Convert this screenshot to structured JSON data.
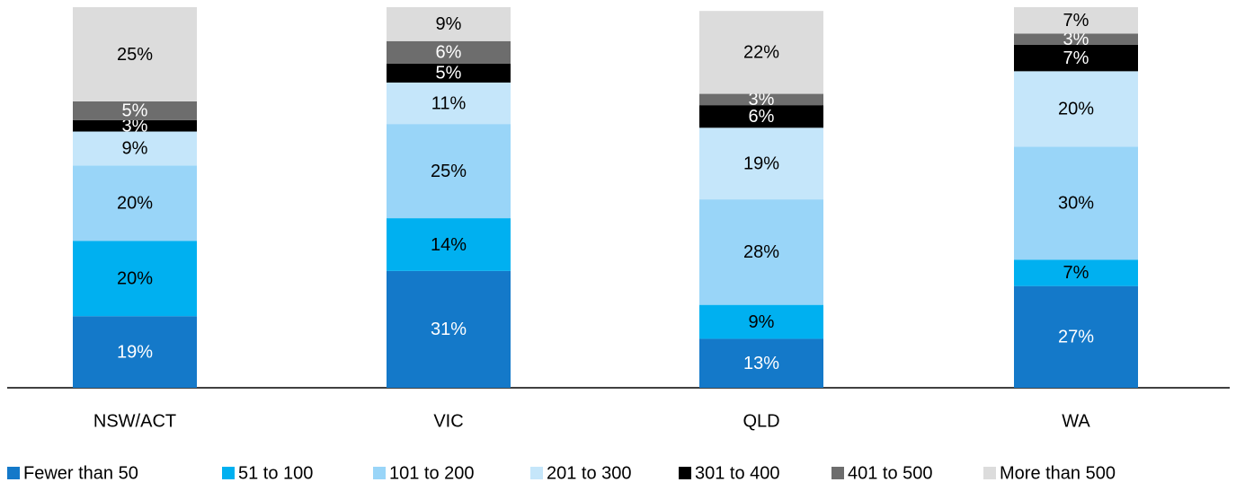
{
  "chart_data": {
    "type": "stacked_bar",
    "categories": [
      "NSW/ACT",
      "VIC",
      "QLD",
      "WA"
    ],
    "ylim": [
      0,
      101
    ],
    "series": [
      {
        "name": "Fewer than 50",
        "color": "#1479c9",
        "values": [
          19,
          31,
          13,
          27
        ],
        "value_labels": [
          "19%",
          "31%",
          "13%",
          "27%"
        ]
      },
      {
        "name": "51 to 100",
        "color": "#00b0f0",
        "values": [
          20,
          14,
          9,
          7
        ],
        "value_labels": [
          "20%",
          "14%",
          "9%",
          "7%"
        ]
      },
      {
        "name": "101 to 200",
        "color": "#99d5f8",
        "values": [
          20,
          25,
          28,
          30
        ],
        "value_labels": [
          "20%",
          "25%",
          "28%",
          "30%"
        ]
      },
      {
        "name": "201 to 300",
        "color": "#c5e6fa",
        "values": [
          9,
          11,
          19,
          20
        ],
        "value_labels": [
          "9%",
          "11%",
          "19%",
          "20%"
        ]
      },
      {
        "name": "301 to 400",
        "color": "#000000",
        "values": [
          3,
          5,
          6,
          7
        ],
        "value_labels": [
          "3%",
          "5%",
          "6%",
          "7%"
        ]
      },
      {
        "name": "401 to 500",
        "color": "#6d6d6d",
        "values": [
          5,
          6,
          3,
          3
        ],
        "value_labels": [
          "5%",
          "6%",
          "3%",
          "3%"
        ]
      },
      {
        "name": "More than 500",
        "color": "#dcdcdc",
        "values": [
          25,
          9,
          22,
          7
        ],
        "value_labels": [
          "25%",
          "9%",
          "22%",
          "7%"
        ]
      }
    ]
  }
}
